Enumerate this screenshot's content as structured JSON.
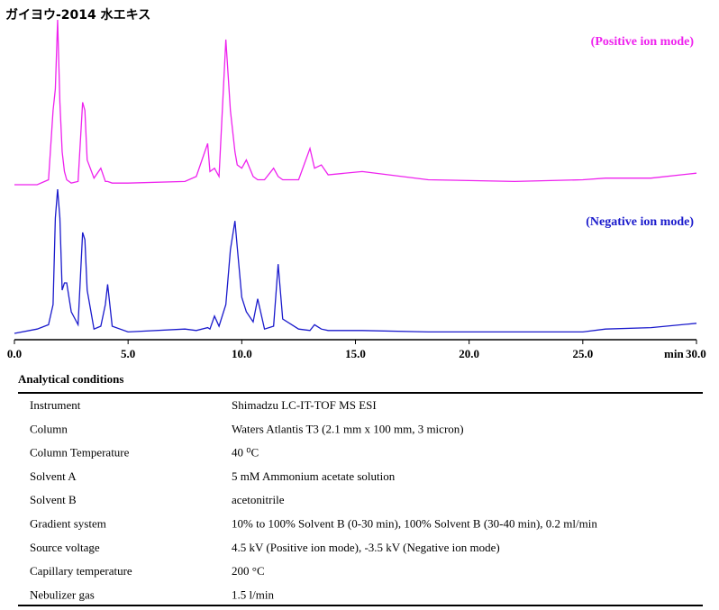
{
  "title": "ガイヨウ-2014 水エキス",
  "chart_data": {
    "type": "line",
    "x_label": "min",
    "x": [
      0,
      1.0,
      1.5,
      1.7,
      1.8,
      1.9,
      2.0,
      2.1,
      2.2,
      2.3,
      2.5,
      2.8,
      3.0,
      3.1,
      3.2,
      3.5,
      3.8,
      4.0,
      4.1,
      4.3,
      5.0,
      7.5,
      8.0,
      8.5,
      8.6,
      8.8,
      9.0,
      9.3,
      9.5,
      9.7,
      9.8,
      10.0,
      10.2,
      10.5,
      10.7,
      11.0,
      11.4,
      11.6,
      11.8,
      12.5,
      13.0,
      13.2,
      13.5,
      13.8,
      15.3,
      18.2,
      22.0,
      25.0,
      26.0,
      28.0,
      30.0
    ],
    "series": [
      {
        "name": "(Positive ion mode)",
        "color": "#ee22ee",
        "values": [
          0,
          0,
          3,
          45,
          58,
          100,
          50,
          20,
          8,
          3,
          1,
          2,
          50,
          45,
          15,
          4,
          10,
          2,
          2,
          1,
          1,
          2,
          5,
          25,
          8,
          10,
          5,
          88,
          45,
          20,
          12,
          10,
          15,
          5,
          3,
          3,
          10,
          5,
          3,
          3,
          22,
          10,
          12,
          6,
          8,
          3,
          2,
          3,
          4,
          4,
          7
        ]
      },
      {
        "name": "(Negative ion mode)",
        "color": "#1a1acc",
        "values": [
          0,
          3,
          6,
          20,
          80,
          100,
          80,
          30,
          35,
          35,
          15,
          6,
          70,
          65,
          30,
          3,
          5,
          20,
          34,
          5,
          1,
          3,
          2,
          4,
          3,
          12,
          5,
          20,
          58,
          78,
          60,
          25,
          15,
          8,
          24,
          3,
          5,
          48,
          10,
          3,
          2,
          6,
          3,
          2,
          2,
          1,
          1,
          1,
          3,
          4,
          7
        ]
      }
    ],
    "xlim": [
      0,
      30
    ],
    "ylim": [
      0,
      100
    ],
    "xticks": [
      {
        "value": 0,
        "label": "0.0"
      },
      {
        "value": 5,
        "label": "5.0"
      },
      {
        "value": 10,
        "label": "10.0"
      },
      {
        "value": 15,
        "label": "15.0"
      },
      {
        "value": 20,
        "label": "20.0"
      },
      {
        "value": 25,
        "label": "25.0"
      },
      {
        "value": 30,
        "label": "30.0"
      }
    ]
  },
  "table": {
    "heading": "Analytical conditions",
    "rows": [
      [
        "Instrument",
        "Shimadzu LC-IT-TOF MS ESI"
      ],
      [
        "Column",
        "Waters Atlantis T3 (2.1 mm x 100 mm, 3 micron)"
      ],
      [
        "Column Temperature",
        "40 ⁰C"
      ],
      [
        "Solvent A",
        "5 mM Ammonium acetate solution"
      ],
      [
        "Solvent B",
        "acetonitrile"
      ],
      [
        "Gradient system",
        "10% to 100% Solvent B (0-30 min), 100% Solvent B (30-40 min), 0.2 ml/min"
      ],
      [
        "Source voltage",
        "4.5 kV (Positive ion mode), -3.5 kV (Negative ion mode)"
      ],
      [
        "Capillary temperature",
        "200 °C"
      ],
      [
        "Nebulizer gas",
        "1.5 l/min"
      ]
    ]
  }
}
